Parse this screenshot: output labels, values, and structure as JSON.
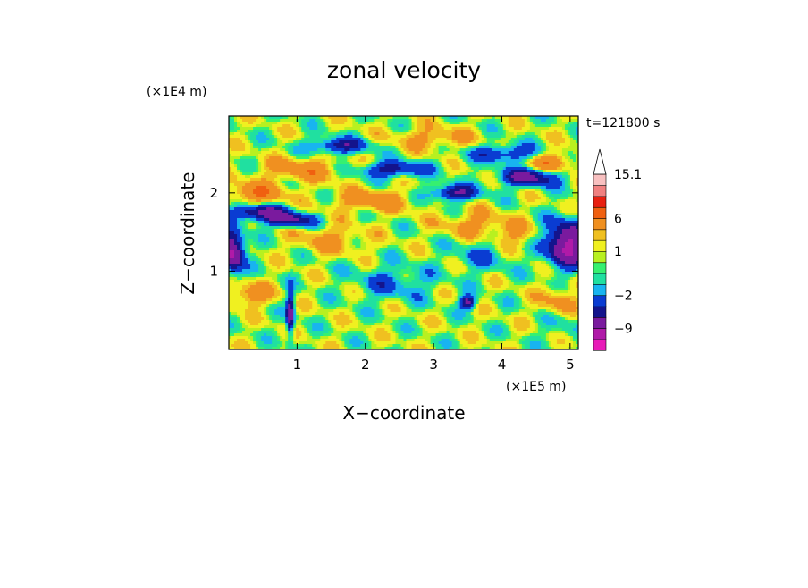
{
  "chart_data": {
    "type": "heatmap",
    "title": "zonal velocity",
    "xlabel": "X−coordinate",
    "ylabel": "Z−coordinate",
    "x_unit": "(×1E5 m)",
    "y_unit": "(×1E4 m)",
    "time_label": "t=121800 s",
    "xlim": [
      0,
      5.12
    ],
    "ylim": [
      0,
      2.98
    ],
    "x_ticks": [
      1,
      2,
      3,
      4,
      5
    ],
    "x_tick_labels": [
      "1",
      "2",
      "3",
      "4",
      "5"
    ],
    "y_ticks": [
      1,
      2
    ],
    "y_tick_labels": [
      "1",
      "2"
    ],
    "colorbar": {
      "levels": [
        -15,
        -12,
        -9,
        -6,
        -4,
        -2,
        -1,
        0,
        0.5,
        1,
        2,
        3,
        6,
        9,
        12,
        15.1
      ],
      "tick_labels": [
        "15.1",
        "6",
        "1",
        "−2",
        "−9"
      ],
      "tick_values": [
        15.1,
        6,
        1,
        -2,
        -9
      ],
      "colors": [
        "#e81ab8",
        "#b01aa8",
        "#7a1a9e",
        "#14148c",
        "#0a3cd2",
        "#18b4f0",
        "#20e0a0",
        "#36f070",
        "#b8f020",
        "#f0f020",
        "#f0c020",
        "#f09020",
        "#f06010",
        "#e82010",
        "#f08080",
        "#f8c0c0"
      ],
      "extend_max": true
    },
    "field": {
      "background_value": 0.7,
      "features": [
        {
          "x": 0.05,
          "z": 1.25,
          "sx": 0.12,
          "sz": 0.18,
          "v": -11
        },
        {
          "x": 0.45,
          "z": 1.75,
          "sx": 0.3,
          "sz": 0.07,
          "v": -8
        },
        {
          "x": 0.9,
          "z": 1.65,
          "sx": 0.25,
          "sz": 0.06,
          "v": -7
        },
        {
          "x": 1.6,
          "z": 2.6,
          "sx": 0.3,
          "sz": 0.07,
          "v": -6
        },
        {
          "x": 2.4,
          "z": 2.3,
          "sx": 0.35,
          "sz": 0.07,
          "v": -6
        },
        {
          "x": 3.3,
          "z": 2.0,
          "sx": 0.25,
          "sz": 0.07,
          "v": -7
        },
        {
          "x": 4.4,
          "z": 2.2,
          "sx": 0.3,
          "sz": 0.08,
          "v": -8
        },
        {
          "x": 4.95,
          "z": 1.35,
          "sx": 0.22,
          "sz": 0.2,
          "v": -11
        },
        {
          "x": 4.1,
          "z": 2.5,
          "sx": 0.4,
          "sz": 0.08,
          "v": -5
        },
        {
          "x": 3.5,
          "z": 0.6,
          "sx": 0.08,
          "sz": 0.06,
          "v": -8
        },
        {
          "x": 0.9,
          "z": 0.45,
          "sx": 0.04,
          "sz": 0.2,
          "v": -9
        },
        {
          "x": 4.9,
          "z": 0.4,
          "sx": 0.2,
          "sz": 0.2,
          "v": -2
        },
        {
          "x": 2.4,
          "z": 0.85,
          "sx": 0.4,
          "sz": 0.15,
          "v": -3
        },
        {
          "x": 3.7,
          "z": 1.2,
          "sx": 0.3,
          "sz": 0.15,
          "v": -2.5
        },
        {
          "x": 0.3,
          "z": 0.7,
          "sx": 0.25,
          "sz": 0.1,
          "v": 4
        },
        {
          "x": 0.4,
          "z": 2.0,
          "sx": 0.3,
          "sz": 0.1,
          "v": 5
        },
        {
          "x": 1.1,
          "z": 2.3,
          "sx": 0.4,
          "sz": 0.1,
          "v": 4
        },
        {
          "x": 2.1,
          "z": 1.9,
          "sx": 0.4,
          "sz": 0.1,
          "v": 4
        },
        {
          "x": 3.6,
          "z": 1.6,
          "sx": 0.35,
          "sz": 0.12,
          "v": 3
        },
        {
          "x": 4.2,
          "z": 1.45,
          "sx": 0.25,
          "sz": 0.12,
          "v": 2.5
        },
        {
          "x": 4.7,
          "z": 2.4,
          "sx": 0.25,
          "sz": 0.1,
          "v": 5
        },
        {
          "x": 4.85,
          "z": 0.6,
          "sx": 0.2,
          "sz": 0.15,
          "v": 4
        },
        {
          "x": 1.5,
          "z": 1.4,
          "sx": 0.35,
          "sz": 0.12,
          "v": 3
        },
        {
          "x": 3.0,
          "z": 2.7,
          "sx": 0.4,
          "sz": 0.1,
          "v": 3
        }
      ]
    }
  }
}
